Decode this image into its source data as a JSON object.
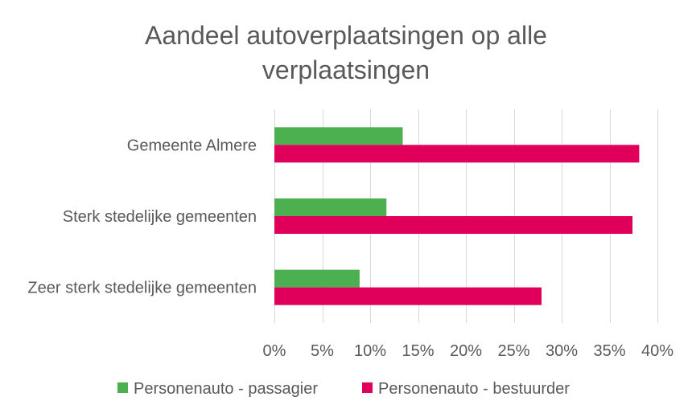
{
  "chart_data": {
    "type": "bar",
    "orientation": "horizontal",
    "title_lines": [
      "Aandeel autoverplaatsingen op alle",
      "verplaatsingen"
    ],
    "categories": [
      "Gemeente Almere",
      "Sterk stedelijke gemeenten",
      "Zeer sterk stedelijke gemeenten"
    ],
    "series": [
      {
        "name": "Personenauto - passagier",
        "color": "#4caf50",
        "values": [
          13.4,
          11.7,
          8.9
        ]
      },
      {
        "name": "Personenauto - bestuurder",
        "color": "#e0005c",
        "values": [
          38.1,
          37.4,
          27.9
        ]
      }
    ],
    "xlim": [
      0,
      40
    ],
    "ticks": [
      0,
      5,
      10,
      15,
      20,
      25,
      30,
      35,
      40
    ],
    "tick_labels": [
      "0%",
      "5%",
      "10%",
      "15%",
      "20%",
      "25%",
      "30%",
      "35%",
      "40%"
    ],
    "grid": true,
    "legend_position": "bottom"
  }
}
